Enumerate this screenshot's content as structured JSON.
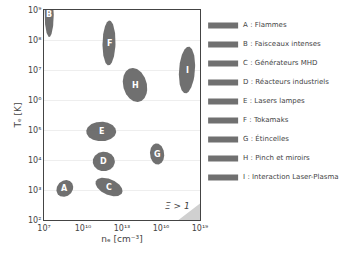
{
  "chart_data": {
    "type": "region",
    "xlabel": "nₑ [cm⁻³]",
    "ylabel": "Tₑ [K]",
    "log": true,
    "grid": "y",
    "legend": "right",
    "xlim": [
      10000000,
      10000000000000000000
    ],
    "ylim": [
      100,
      1000000000
    ],
    "xticks": [
      {
        "value": 10000000,
        "label": "10⁷"
      },
      {
        "value": 10000000000,
        "label": "10¹⁰"
      },
      {
        "value": 10000000000000,
        "label": "10¹³"
      },
      {
        "value": 10000000000000000,
        "label": "10¹⁶"
      },
      {
        "value": 10000000000000000000,
        "label": "10¹⁹"
      }
    ],
    "yticks": [
      {
        "value": 100,
        "label": "10²"
      },
      {
        "value": 1000,
        "label": "10³"
      },
      {
        "value": 10000,
        "label": "10⁴"
      },
      {
        "value": 100000,
        "label": "10⁵"
      },
      {
        "value": 1000000,
        "label": "10⁶"
      },
      {
        "value": 10000000,
        "label": "10⁷"
      },
      {
        "value": 100000000,
        "label": "10⁸"
      },
      {
        "value": 1000000000,
        "label": "10⁹"
      }
    ],
    "text_color": "white",
    "shaded_region": {
      "label": "Ξ > 1",
      "label_lx": 17.3,
      "label_ly": 2.25,
      "c": -3.78,
      "slope": 0.3333,
      "color": "#d0d0d0"
    },
    "series": [
      {
        "name": "A : Flammes",
        "label": "A",
        "lx": 8.6,
        "ly": 3.05,
        "lw": 1.3,
        "lh": 0.55,
        "angle": 5,
        "color": "#606060"
      },
      {
        "name": "B : Faisceaux intenses",
        "label": "B",
        "lx": 7.4,
        "ly": 8.85,
        "lw": 0.7,
        "lh": 1.5,
        "angle": 0,
        "color": "#606060"
      },
      {
        "name": "C : Générateurs MHD",
        "label": "C",
        "lx": 12.0,
        "ly": 3.1,
        "lw": 2.1,
        "lh": 0.55,
        "angle": -8,
        "color": "#606060"
      },
      {
        "name": "D : Réacteurs industriels",
        "label": "D",
        "lx": 11.6,
        "ly": 3.95,
        "lw": 1.7,
        "lh": 0.65,
        "angle": 0,
        "color": "#606060"
      },
      {
        "name": "E : Lasers lampes",
        "label": "E",
        "lx": 11.4,
        "ly": 4.95,
        "lw": 2.3,
        "lh": 0.65,
        "angle": 0,
        "color": "#606060"
      },
      {
        "name": "F : Tokamaks",
        "label": "F",
        "lx": 12.0,
        "ly": 7.9,
        "lw": 1.0,
        "lh": 1.5,
        "angle": -5,
        "color": "#606060"
      },
      {
        "name": "G : Étincelles",
        "label": "G",
        "lx": 15.7,
        "ly": 4.2,
        "lw": 1.1,
        "lh": 0.7,
        "angle": -5,
        "color": "#606060"
      },
      {
        "name": "H : Pinch et miroirs",
        "label": "H",
        "lx": 14.0,
        "ly": 6.5,
        "lw": 1.9,
        "lh": 1.1,
        "angle": -10,
        "color": "#606060"
      },
      {
        "name": "I : Interaction Laser-Plasma",
        "label": "I",
        "lx": 18.0,
        "ly": 7.0,
        "lw": 1.2,
        "lh": 1.6,
        "angle": -20,
        "color": "#606060"
      }
    ]
  }
}
